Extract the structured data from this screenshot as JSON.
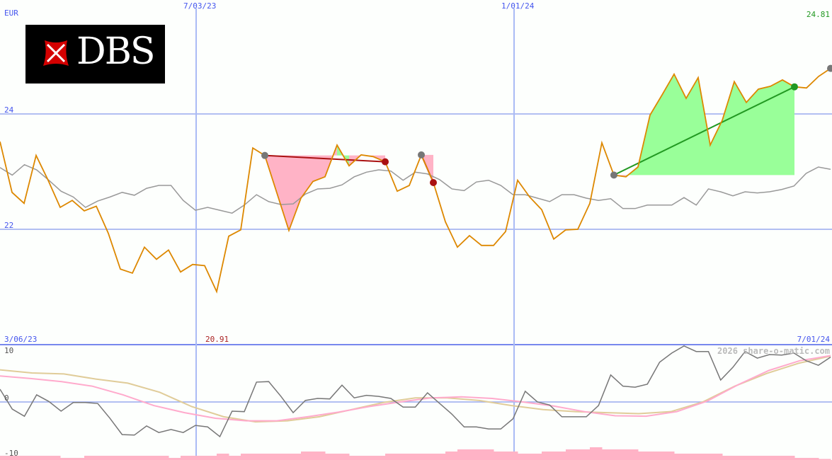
{
  "currency": "EUR",
  "logo_text": "DBS",
  "watermark": "2026 share-o-matic.com",
  "colors": {
    "price": "#dd8800",
    "ma": "#999999",
    "osc": "#777777",
    "osc_pink": "#ffaacc",
    "osc_tan": "#e0cc99",
    "gain": "#99ff99",
    "loss": "#ffb3c6",
    "grid": "#99aaee",
    "axis_label": "#4455ee",
    "min_label": "#aa2222",
    "max_label": "#229922"
  },
  "chart_data": [
    {
      "type": "line",
      "panel": "price",
      "xlabel": "",
      "ylabel": "EUR",
      "ylim": [
        20.3,
        25.3
      ],
      "y_ticks": [
        "22",
        "24"
      ],
      "x_tick_labels": [
        "7/03/23",
        "1/01/24"
      ],
      "range_start": "3/06/23",
      "range_end": "7/01/24",
      "min_label": "20.91",
      "max_label": "24.81",
      "grid": true,
      "series": [
        {
          "key": "price",
          "values": [
            23.52,
            22.64,
            22.45,
            23.28,
            22.85,
            22.38,
            22.5,
            22.32,
            22.4,
            21.93,
            21.31,
            21.24,
            21.69,
            21.48,
            21.64,
            21.26,
            21.39,
            21.37,
            20.92,
            21.88,
            21.99,
            23.41,
            23.28,
            22.63,
            21.98,
            22.54,
            22.83,
            22.91,
            23.46,
            23.1,
            23.29,
            23.26,
            23.17,
            22.66,
            22.76,
            23.29,
            22.81,
            22.13,
            21.69,
            21.89,
            21.72,
            21.72,
            21.96,
            22.85,
            22.56,
            22.34,
            21.83,
            21.99,
            22.0,
            22.45,
            23.5,
            22.94,
            22.91,
            23.08,
            23.98,
            24.33,
            24.69,
            24.27,
            24.63,
            23.46,
            23.89,
            24.56,
            24.2,
            24.43,
            24.48,
            24.59,
            24.47,
            24.45,
            24.65,
            24.79
          ]
        },
        {
          "key": "ma",
          "values": [
            23.07,
            22.94,
            23.12,
            23.03,
            22.85,
            22.66,
            22.56,
            22.38,
            22.49,
            22.56,
            22.64,
            22.59,
            22.71,
            22.76,
            22.76,
            22.5,
            22.33,
            22.38,
            22.33,
            22.28,
            22.42,
            22.6,
            22.48,
            22.43,
            22.44,
            22.61,
            22.7,
            22.71,
            22.77,
            22.91,
            22.99,
            23.03,
            23.01,
            22.85,
            22.99,
            22.96,
            22.86,
            22.7,
            22.67,
            22.82,
            22.85,
            22.76,
            22.6,
            22.6,
            22.54,
            22.48,
            22.6,
            22.6,
            22.54,
            22.5,
            22.53,
            22.36,
            22.36,
            22.42,
            22.42,
            22.42,
            22.55,
            22.42,
            22.7,
            22.65,
            22.58,
            22.65,
            22.63,
            22.65,
            22.69,
            22.75,
            22.97,
            23.08,
            23.04
          ]
        }
      ],
      "trades": [
        {
          "entry": 22,
          "exit": 32,
          "result": "loss"
        },
        {
          "entry": 35,
          "exit": 36,
          "result": "loss"
        },
        {
          "entry": 51,
          "exit": 66,
          "result": "gain"
        },
        {
          "entry": 69,
          "exit": null,
          "result": "open"
        }
      ]
    },
    {
      "type": "line",
      "panel": "oscillator",
      "ylim": [
        -10,
        10
      ],
      "y_ticks": [
        "10",
        "0",
        "-10"
      ],
      "series": [
        {
          "key": "osc",
          "values": [
            2.5,
            -1.4,
            -2.8,
            1.4,
            0.1,
            -1.8,
            -0.1,
            -0.1,
            -0.3,
            -3.2,
            -6.4,
            -6.5,
            -4.7,
            -6.0,
            -5.4,
            -6.0,
            -4.6,
            -4.9,
            -6.8,
            -1.8,
            -1.9,
            3.9,
            4.0,
            1.1,
            -2.1,
            0.3,
            0.7,
            0.6,
            3.3,
            0.8,
            1.3,
            1.1,
            0.7,
            -1.0,
            -1.0,
            1.8,
            -0.3,
            -2.4,
            -4.9,
            -4.9,
            -5.3,
            -5.3,
            -3.3,
            2.1,
            0.0,
            -0.6,
            -2.9,
            -2.9,
            -2.9,
            -0.7,
            5.3,
            3.1,
            2.9,
            3.5,
            7.8,
            9.6,
            11.0,
            9.9,
            9.9,
            4.3,
            6.8,
            9.9,
            8.6,
            9.3,
            9.2,
            9.6,
            8.1,
            7.2,
            8.8
          ]
        },
        {
          "key": "osc_pink",
          "values": [
            5.1,
            4.6,
            4.0,
            3.1,
            1.4,
            -0.7,
            -2.1,
            -3.2,
            -3.7,
            -3.7,
            -2.9,
            -2.0,
            -0.9,
            0.0,
            0.8,
            1.0,
            0.7,
            0.0,
            -0.8,
            -1.9,
            -2.7,
            -2.8,
            -1.9,
            0.2,
            3.4,
            6.2,
            8.1,
            9.1
          ]
        },
        {
          "key": "osc_tan",
          "values": [
            6.3,
            5.7,
            5.5,
            4.5,
            3.7,
            1.9,
            -0.9,
            -2.9,
            -3.9,
            -3.7,
            -2.9,
            -1.5,
            -0.1,
            0.8,
            0.8,
            0.3,
            -0.7,
            -1.5,
            -1.9,
            -2.1,
            -2.3,
            -1.9,
            0.0,
            3.1,
            5.6,
            7.6,
            9.0
          ]
        }
      ],
      "volume_bars": [
        2,
        2,
        2,
        2,
        2,
        1,
        1,
        2,
        2,
        2,
        2,
        2,
        2,
        2,
        1,
        2,
        2,
        2,
        3,
        2,
        3,
        3,
        3,
        3,
        3,
        4,
        4,
        3,
        3,
        2,
        2,
        2,
        3,
        3,
        3,
        3,
        3,
        4,
        5,
        5,
        5,
        4,
        4,
        3,
        3,
        4,
        4,
        5,
        5,
        6,
        5,
        5,
        5,
        4,
        4,
        4,
        3,
        3,
        3,
        3,
        2,
        2,
        2,
        2,
        2,
        2,
        1,
        1,
        0.5
      ]
    }
  ]
}
